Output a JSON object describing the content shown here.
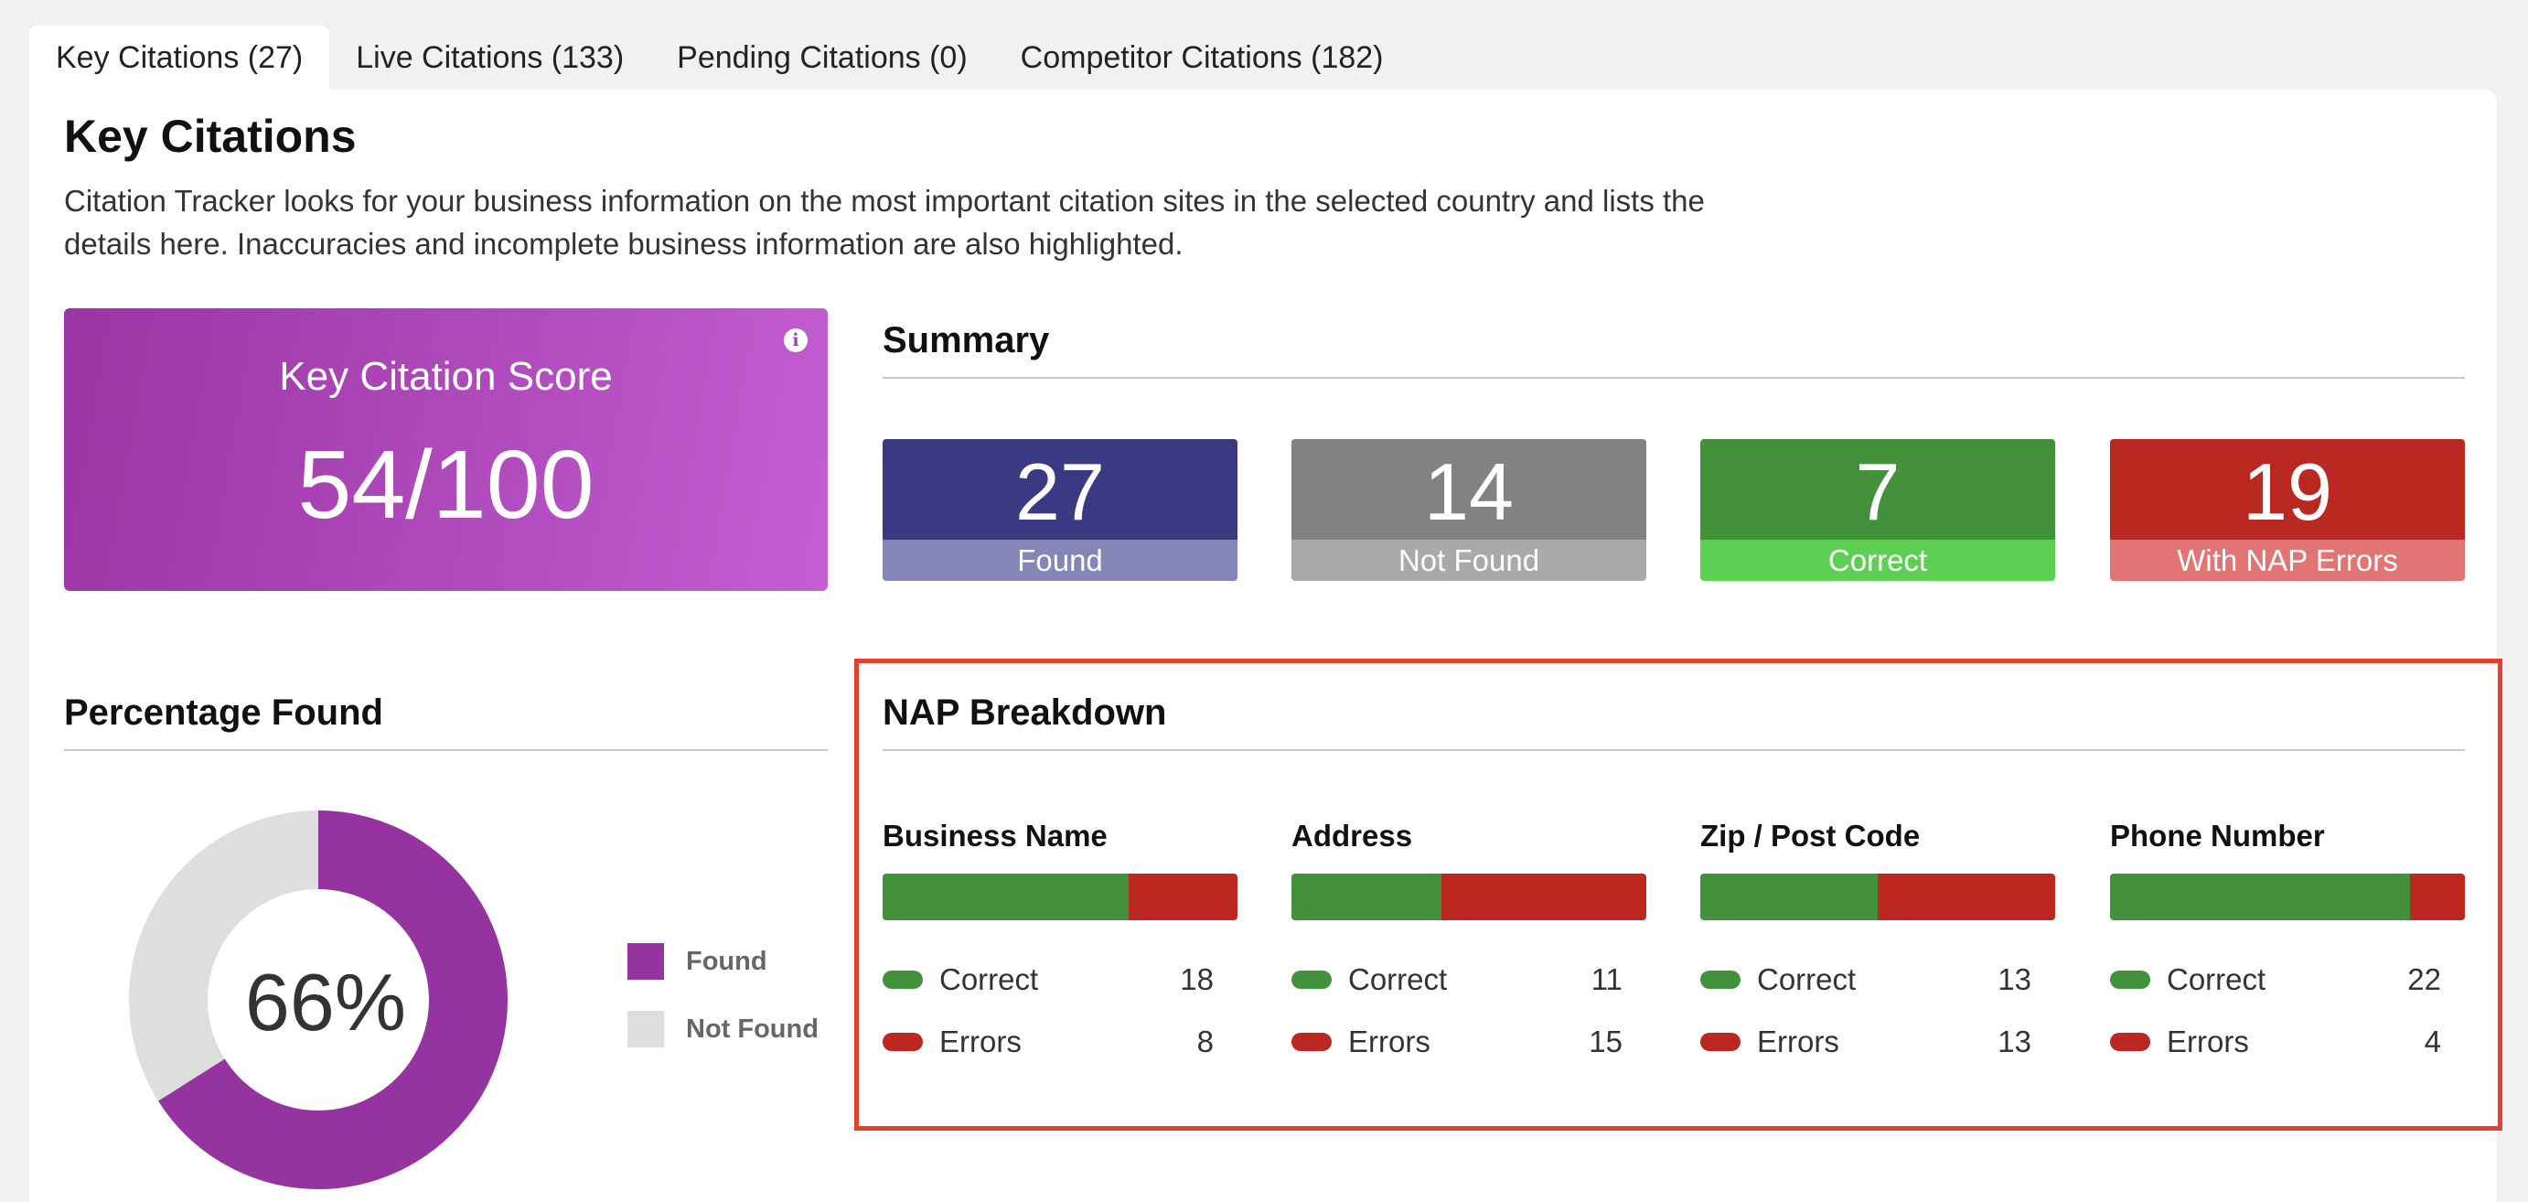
{
  "tabs": [
    {
      "label": "Key Citations (27)"
    },
    {
      "label": "Live Citations (133)"
    },
    {
      "label": "Pending Citations (0)"
    },
    {
      "label": "Competitor Citations (182)"
    }
  ],
  "page": {
    "title": "Key Citations",
    "description": "Citation Tracker looks for your business information on the most important citation sites in the selected country and lists the details here. Inaccuracies and incomplete business information are also highlighted."
  },
  "score": {
    "label": "Key Citation Score",
    "value": "54/100",
    "icon": "info-icon"
  },
  "summary": {
    "title": "Summary",
    "tiles": [
      {
        "value": "27",
        "label": "Found",
        "top_color": "#393a81",
        "bottom_color": "#8486b7"
      },
      {
        "value": "14",
        "label": "Not Found",
        "top_color": "#828282",
        "bottom_color": "#a9a9a9"
      },
      {
        "value": "7",
        "label": "Correct",
        "top_color": "#43923b",
        "bottom_color": "#5dcf53"
      },
      {
        "value": "19",
        "label": "With NAP Errors",
        "top_color": "#b92821",
        "bottom_color": "#e07573"
      }
    ]
  },
  "percentage": {
    "title": "Percentage Found",
    "value": "66%",
    "found_fraction": 0.66,
    "found_color": "#9533a0",
    "notfound_color": "#dedede",
    "legend": [
      {
        "label": "Found",
        "color": "#9533a0"
      },
      {
        "label": "Not Found",
        "color": "#dedede"
      }
    ]
  },
  "nap": {
    "title": "NAP Breakdown",
    "correct_label": "Correct",
    "errors_label": "Errors",
    "correct_color": "#43923b",
    "errors_color": "#bc2722",
    "columns": [
      {
        "title": "Business Name",
        "correct": "18",
        "errors": "8"
      },
      {
        "title": "Address",
        "correct": "11",
        "errors": "15"
      },
      {
        "title": "Zip / Post Code",
        "correct": "13",
        "errors": "13"
      },
      {
        "title": "Phone Number",
        "correct": "22",
        "errors": "4"
      }
    ]
  }
}
